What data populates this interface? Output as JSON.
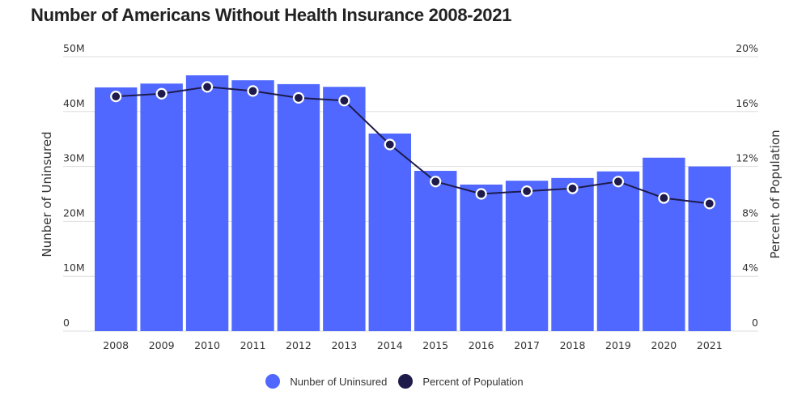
{
  "chart_data": {
    "type": "bar+line",
    "title": "Number of Americans Without Health Insurance 2008-2021",
    "categories": [
      "2008",
      "2009",
      "2010",
      "2011",
      "2012",
      "2013",
      "2014",
      "2015",
      "2016",
      "2017",
      "2018",
      "2019",
      "2020",
      "2021"
    ],
    "series": [
      {
        "name": "Nunber of Uninsured",
        "type": "bar",
        "axis": "left",
        "color": "#5068FF",
        "values": [
          44.4,
          45.1,
          46.6,
          45.7,
          45.0,
          44.5,
          36.0,
          29.2,
          26.7,
          27.4,
          27.9,
          29.1,
          31.6,
          30.0
        ]
      },
      {
        "name": "Percent of Population",
        "type": "line",
        "axis": "right",
        "color": "#1E1B4B",
        "values": [
          17.1,
          17.3,
          17.8,
          17.5,
          17.0,
          16.8,
          13.6,
          10.9,
          10.0,
          10.2,
          10.4,
          10.9,
          9.7,
          9.3
        ]
      }
    ],
    "ylabel": "Nunber of Uninsured",
    "ylabel_right": "Percent of Population",
    "ylim": [
      0,
      50
    ],
    "ylim_right": [
      0,
      20
    ],
    "yticks": [
      0,
      10,
      20,
      30,
      40,
      50
    ],
    "ytick_labels": [
      "0",
      "10M",
      "20M",
      "30M",
      "40M",
      "50M"
    ],
    "yticks_right": [
      0,
      4,
      8,
      12,
      16,
      20
    ],
    "ytick_labels_right": [
      "0",
      "4%",
      "8%",
      "12%",
      "16%",
      "20%"
    ],
    "grid": true,
    "legend_position": "bottom-center"
  }
}
